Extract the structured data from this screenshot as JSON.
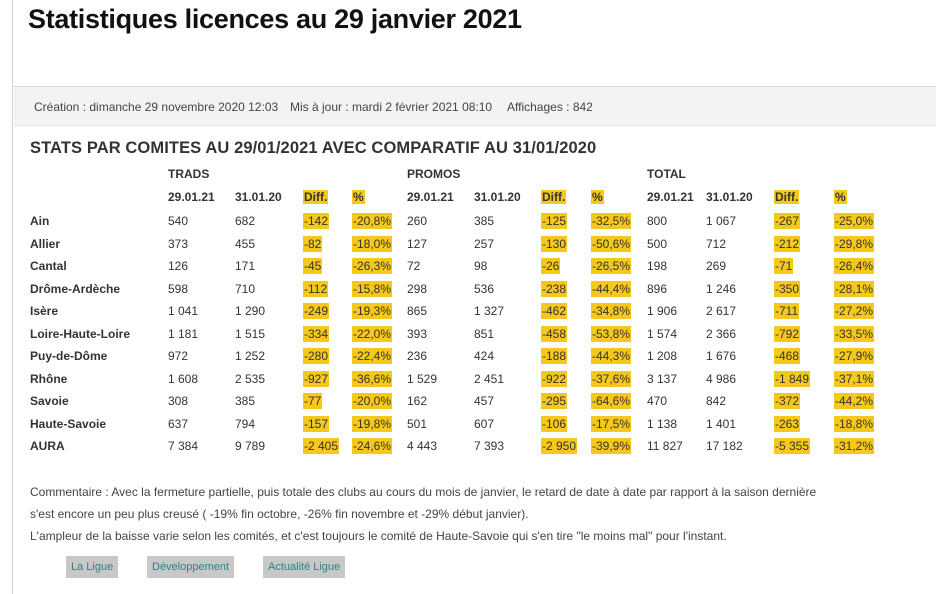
{
  "page_title": "Statistiques licences au 29 janvier 2021",
  "meta": {
    "created": "Création : dimanche 29 novembre 2020 12:03",
    "updated": "Mis à jour : mardi 2 février 2021 08:10",
    "views": "Affichages : 842"
  },
  "section_title": "STATS PAR COMITES AU 29/01/2021 AVEC COMPARATIF AU 31/01/2020",
  "groups": [
    "TRADS",
    "PROMOS",
    "TOTAL"
  ],
  "headers": [
    "29.01.21",
    "31.01.20",
    "Diff.",
    "%",
    "29.01.21",
    "31.01.20",
    "Diff.",
    "%",
    "29.01.21",
    "31.01.20",
    "Diff.",
    "%"
  ],
  "rows": [
    {
      "name": "Ain",
      "cells": [
        "540",
        "682",
        "-142",
        "-20,8%",
        "260",
        "385",
        "-125",
        "-32,5%",
        "800",
        "1 067",
        "-267",
        "-25,0%"
      ]
    },
    {
      "name": "Allier",
      "cells": [
        "373",
        "455",
        "-82",
        "-18,0%",
        "127",
        "257",
        "-130",
        "-50,6%",
        "500",
        "712",
        "-212",
        "-29,8%"
      ]
    },
    {
      "name": "Cantal",
      "cells": [
        "126",
        "171",
        "-45",
        "-26,3%",
        "72",
        "98",
        "-26",
        "-26,5%",
        "198",
        "269",
        "-71",
        "-26,4%"
      ]
    },
    {
      "name": "Drôme-Ardèche",
      "cells": [
        "598",
        "710",
        "-112",
        "-15,8%",
        "298",
        "536",
        "-238",
        "-44,4%",
        "896",
        "1 246",
        "-350",
        "-28,1%"
      ]
    },
    {
      "name": "Isère",
      "cells": [
        "1 041",
        "1 290",
        "-249",
        "-19,3%",
        "865",
        "1 327",
        "-462",
        "-34,8%",
        "1 906",
        "2 617",
        "-711",
        "-27,2%"
      ]
    },
    {
      "name": "Loire-Haute-Loire",
      "cells": [
        "1 181",
        "1 515",
        "-334",
        "-22,0%",
        "393",
        "851",
        "-458",
        "-53,8%",
        "1 574",
        "2 366",
        "-792",
        "-33,5%"
      ]
    },
    {
      "name": "Puy-de-Dôme",
      "cells": [
        "972",
        "1 252",
        "-280",
        "-22,4%",
        "236",
        "424",
        "-188",
        "-44,3%",
        "1 208",
        "1 676",
        "-468",
        "-27,9%"
      ]
    },
    {
      "name": "Rhône",
      "cells": [
        "1 608",
        "2 535",
        "-927",
        "-36,6%",
        "1 529",
        "2 451",
        "-922",
        "-37,6%",
        "3 137",
        "4 986",
        "-1 849",
        "-37,1%"
      ]
    },
    {
      "name": "Savoie",
      "cells": [
        "308",
        "385",
        "-77",
        "-20,0%",
        "162",
        "457",
        "-295",
        "-64,6%",
        "470",
        "842",
        "-372",
        "-44,2%"
      ]
    },
    {
      "name": "Haute-Savoie",
      "cells": [
        "637",
        "794",
        "-157",
        "-19,8%",
        "501",
        "607",
        "-106",
        "-17,5%",
        "1 138",
        "1 401",
        "-263",
        "-18,8%"
      ]
    },
    {
      "name": "AURA",
      "cells": [
        "7 384",
        "9 789",
        "-2 405",
        "-24,6%",
        "4 443",
        "7 393",
        "-2 950",
        "-39,9%",
        "11 827",
        "17 182",
        "-5 355",
        "-31,2%"
      ]
    }
  ],
  "highlight_color": "#f7c81c",
  "comment": [
    "Commentaire : Avec la fermeture partielle, puis totale des clubs au cours du mois de janvier, le retard de date à date par rapport à la saison dernière",
    "s'est encore un peu plus creusé ( -19% fin octobre, -26% fin novembre et -29% début janvier).",
    "L'ampleur de la baisse varie selon les comités, et c'est toujours le comité de Haute-Savoie qui s'en tire \"le moins mal\" pour l'instant."
  ],
  "tags": [
    "La Ligue",
    "Développement",
    "Actualité Ligue"
  ]
}
